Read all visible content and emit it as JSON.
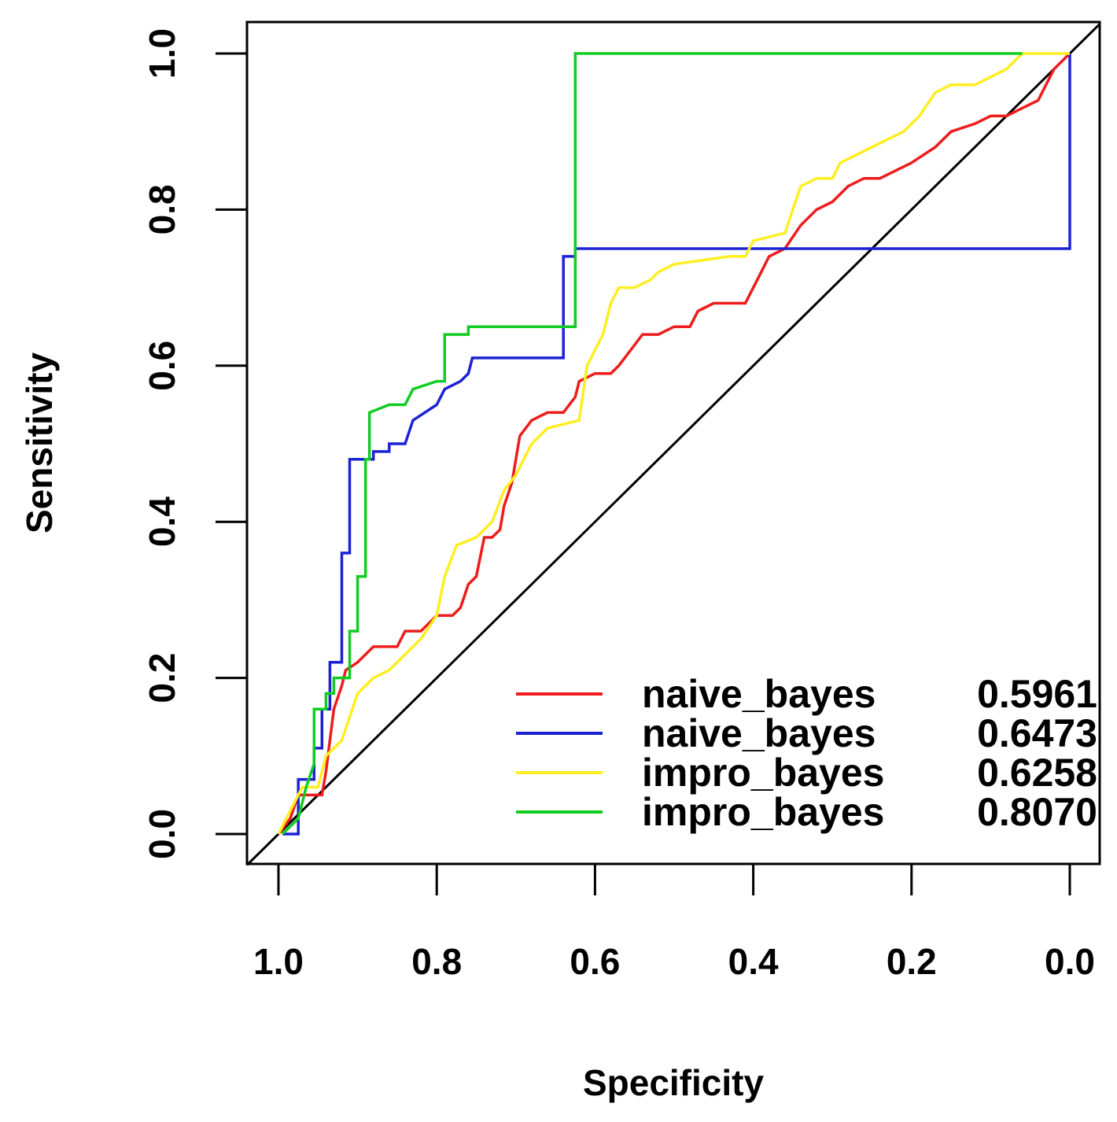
{
  "chart_data": {
    "type": "line",
    "title": "",
    "xlabel": "Specificity",
    "ylabel": "Sensitivity",
    "xlim": [
      1.0,
      0.0
    ],
    "ylim": [
      0.0,
      1.0
    ],
    "x_reversed": true,
    "grid": false,
    "x_ticks": [
      "1.0",
      "0.8",
      "0.6",
      "0.4",
      "0.2",
      "0.0"
    ],
    "y_ticks": [
      "0.0",
      "0.2",
      "0.4",
      "0.6",
      "0.8",
      "1.0"
    ],
    "legend_position": "bottom-right",
    "reference_line": {
      "name": "chance diagonal",
      "color": "#000000",
      "points": [
        [
          1.0,
          0.0
        ],
        [
          0.0,
          1.0
        ]
      ]
    },
    "series": [
      {
        "name": "naive_bayes",
        "auc": "0.5961",
        "color": "#ee1c1c",
        "points": [
          [
            1.0,
            0.0
          ],
          [
            0.985,
            0.02
          ],
          [
            0.975,
            0.05
          ],
          [
            0.945,
            0.05
          ],
          [
            0.94,
            0.08
          ],
          [
            0.93,
            0.16
          ],
          [
            0.92,
            0.19
          ],
          [
            0.915,
            0.21
          ],
          [
            0.9,
            0.22
          ],
          [
            0.89,
            0.23
          ],
          [
            0.88,
            0.24
          ],
          [
            0.85,
            0.24
          ],
          [
            0.84,
            0.26
          ],
          [
            0.82,
            0.26
          ],
          [
            0.8,
            0.28
          ],
          [
            0.78,
            0.28
          ],
          [
            0.77,
            0.29
          ],
          [
            0.76,
            0.32
          ],
          [
            0.75,
            0.33
          ],
          [
            0.74,
            0.38
          ],
          [
            0.73,
            0.38
          ],
          [
            0.72,
            0.39
          ],
          [
            0.715,
            0.42
          ],
          [
            0.705,
            0.45
          ],
          [
            0.7,
            0.48
          ],
          [
            0.695,
            0.51
          ],
          [
            0.68,
            0.53
          ],
          [
            0.66,
            0.54
          ],
          [
            0.64,
            0.54
          ],
          [
            0.625,
            0.56
          ],
          [
            0.62,
            0.58
          ],
          [
            0.6,
            0.59
          ],
          [
            0.58,
            0.59
          ],
          [
            0.57,
            0.6
          ],
          [
            0.555,
            0.62
          ],
          [
            0.54,
            0.64
          ],
          [
            0.52,
            0.64
          ],
          [
            0.5,
            0.65
          ],
          [
            0.48,
            0.65
          ],
          [
            0.47,
            0.67
          ],
          [
            0.45,
            0.68
          ],
          [
            0.41,
            0.68
          ],
          [
            0.39,
            0.72
          ],
          [
            0.38,
            0.74
          ],
          [
            0.36,
            0.75
          ],
          [
            0.34,
            0.78
          ],
          [
            0.32,
            0.8
          ],
          [
            0.3,
            0.81
          ],
          [
            0.28,
            0.83
          ],
          [
            0.26,
            0.84
          ],
          [
            0.24,
            0.84
          ],
          [
            0.22,
            0.85
          ],
          [
            0.2,
            0.86
          ],
          [
            0.17,
            0.88
          ],
          [
            0.15,
            0.9
          ],
          [
            0.12,
            0.91
          ],
          [
            0.1,
            0.92
          ],
          [
            0.08,
            0.92
          ],
          [
            0.06,
            0.93
          ],
          [
            0.04,
            0.94
          ],
          [
            0.03,
            0.96
          ],
          [
            0.02,
            0.98
          ],
          [
            0.0,
            1.0
          ]
        ]
      },
      {
        "name": "naive_bayes",
        "auc": "0.6473",
        "color": "#1c22d4",
        "points": [
          [
            0.995,
            0.0
          ],
          [
            0.975,
            0.0
          ],
          [
            0.975,
            0.07
          ],
          [
            0.955,
            0.07
          ],
          [
            0.955,
            0.11
          ],
          [
            0.945,
            0.11
          ],
          [
            0.945,
            0.16
          ],
          [
            0.935,
            0.16
          ],
          [
            0.935,
            0.22
          ],
          [
            0.92,
            0.22
          ],
          [
            0.92,
            0.36
          ],
          [
            0.91,
            0.36
          ],
          [
            0.91,
            0.48
          ],
          [
            0.88,
            0.48
          ],
          [
            0.88,
            0.49
          ],
          [
            0.86,
            0.49
          ],
          [
            0.86,
            0.5
          ],
          [
            0.84,
            0.5
          ],
          [
            0.83,
            0.53
          ],
          [
            0.8,
            0.55
          ],
          [
            0.79,
            0.57
          ],
          [
            0.77,
            0.58
          ],
          [
            0.76,
            0.59
          ],
          [
            0.755,
            0.61
          ],
          [
            0.64,
            0.61
          ],
          [
            0.64,
            0.74
          ],
          [
            0.625,
            0.74
          ],
          [
            0.625,
            0.75
          ],
          [
            0.0,
            0.75
          ],
          [
            0.0,
            1.0
          ]
        ]
      },
      {
        "name": "impro_bayes",
        "auc": "0.6258",
        "color": "#ffee22",
        "points": [
          [
            1.0,
            0.0
          ],
          [
            0.985,
            0.03
          ],
          [
            0.97,
            0.06
          ],
          [
            0.95,
            0.06
          ],
          [
            0.94,
            0.1
          ],
          [
            0.92,
            0.12
          ],
          [
            0.91,
            0.15
          ],
          [
            0.9,
            0.18
          ],
          [
            0.88,
            0.2
          ],
          [
            0.86,
            0.21
          ],
          [
            0.84,
            0.23
          ],
          [
            0.82,
            0.25
          ],
          [
            0.8,
            0.28
          ],
          [
            0.79,
            0.33
          ],
          [
            0.775,
            0.37
          ],
          [
            0.75,
            0.38
          ],
          [
            0.73,
            0.4
          ],
          [
            0.715,
            0.44
          ],
          [
            0.7,
            0.46
          ],
          [
            0.68,
            0.5
          ],
          [
            0.66,
            0.52
          ],
          [
            0.62,
            0.53
          ],
          [
            0.61,
            0.6
          ],
          [
            0.6,
            0.62
          ],
          [
            0.59,
            0.64
          ],
          [
            0.58,
            0.68
          ],
          [
            0.57,
            0.7
          ],
          [
            0.55,
            0.7
          ],
          [
            0.53,
            0.71
          ],
          [
            0.52,
            0.72
          ],
          [
            0.5,
            0.73
          ],
          [
            0.43,
            0.74
          ],
          [
            0.41,
            0.74
          ],
          [
            0.4,
            0.76
          ],
          [
            0.36,
            0.77
          ],
          [
            0.35,
            0.8
          ],
          [
            0.34,
            0.83
          ],
          [
            0.32,
            0.84
          ],
          [
            0.3,
            0.84
          ],
          [
            0.29,
            0.86
          ],
          [
            0.27,
            0.87
          ],
          [
            0.25,
            0.88
          ],
          [
            0.23,
            0.89
          ],
          [
            0.21,
            0.9
          ],
          [
            0.19,
            0.92
          ],
          [
            0.17,
            0.95
          ],
          [
            0.15,
            0.96
          ],
          [
            0.12,
            0.96
          ],
          [
            0.1,
            0.97
          ],
          [
            0.08,
            0.98
          ],
          [
            0.06,
            1.0
          ],
          [
            0.0,
            1.0
          ]
        ]
      },
      {
        "name": "impro_bayes",
        "auc": "0.8070",
        "color": "#11cc22",
        "points": [
          [
            0.995,
            0.0
          ],
          [
            0.975,
            0.02
          ],
          [
            0.965,
            0.06
          ],
          [
            0.955,
            0.09
          ],
          [
            0.955,
            0.16
          ],
          [
            0.94,
            0.16
          ],
          [
            0.94,
            0.18
          ],
          [
            0.93,
            0.18
          ],
          [
            0.93,
            0.2
          ],
          [
            0.91,
            0.2
          ],
          [
            0.91,
            0.26
          ],
          [
            0.9,
            0.26
          ],
          [
            0.9,
            0.33
          ],
          [
            0.89,
            0.33
          ],
          [
            0.89,
            0.48
          ],
          [
            0.885,
            0.48
          ],
          [
            0.885,
            0.54
          ],
          [
            0.86,
            0.55
          ],
          [
            0.84,
            0.55
          ],
          [
            0.83,
            0.57
          ],
          [
            0.8,
            0.58
          ],
          [
            0.79,
            0.58
          ],
          [
            0.79,
            0.64
          ],
          [
            0.76,
            0.64
          ],
          [
            0.76,
            0.65
          ],
          [
            0.64,
            0.65
          ],
          [
            0.625,
            0.65
          ],
          [
            0.625,
            1.0
          ],
          [
            0.06,
            1.0
          ]
        ]
      }
    ]
  }
}
